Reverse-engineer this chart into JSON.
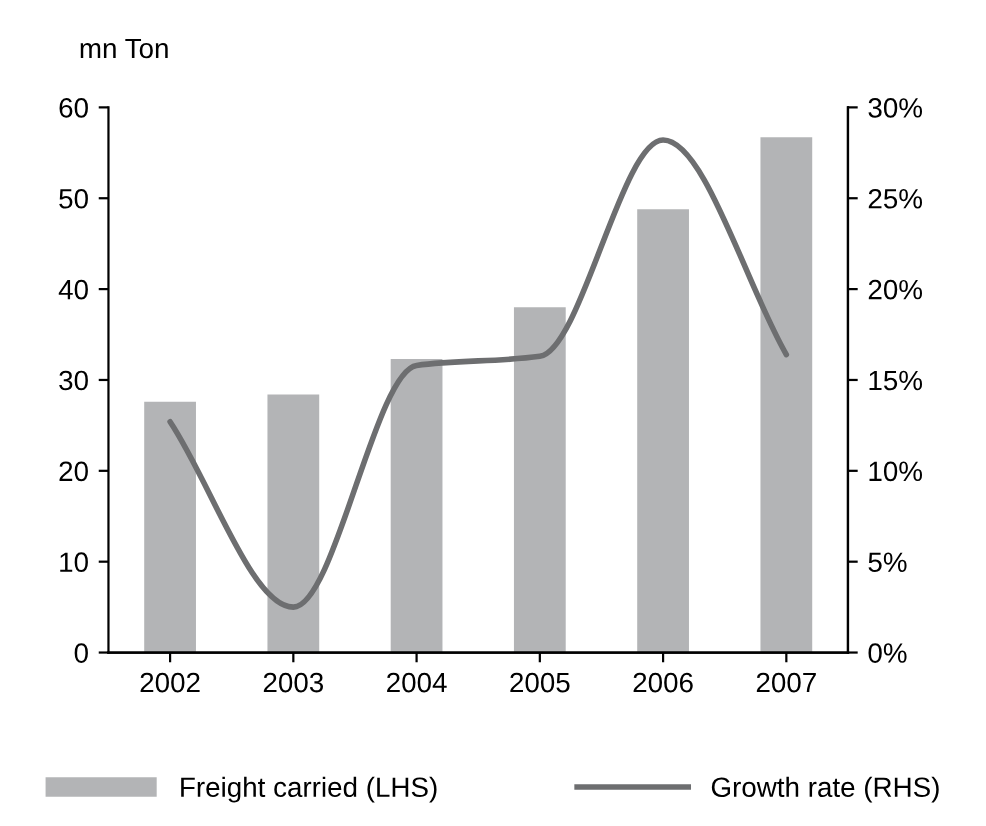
{
  "chart_data": {
    "type": "bar",
    "ylabel": "mn Ton",
    "categories": [
      "2002",
      "2003",
      "2004",
      "2005",
      "2006",
      "2007"
    ],
    "series": [
      {
        "name": "Freight carried (LHS)",
        "color": "#b3b4b6",
        "values": [
          27.6,
          28.4,
          32.3,
          38.0,
          48.8,
          56.7
        ]
      },
      {
        "name": "Growth rate (RHS)",
        "color": "#6d6e70",
        "type": "line",
        "axis": "y2",
        "values": [
          12.7,
          2.5,
          15.8,
          16.3,
          28.2,
          16.4
        ]
      }
    ],
    "ylim": [
      0,
      60
    ],
    "yticks": [
      0,
      10,
      20,
      30,
      40,
      50,
      60
    ],
    "y2lim": [
      0,
      30
    ],
    "y2ticks": [
      {
        "value": 0,
        "label": "0%"
      },
      {
        "value": 5,
        "label": "5%"
      },
      {
        "value": 10,
        "label": "10%"
      },
      {
        "value": 15,
        "label": "15%"
      },
      {
        "value": 20,
        "label": "20%"
      },
      {
        "value": 25,
        "label": "25%"
      },
      {
        "value": 30,
        "label": "30%"
      }
    ],
    "grid": false,
    "legend": "bottom",
    "marker": "none",
    "line_style": "solid"
  }
}
